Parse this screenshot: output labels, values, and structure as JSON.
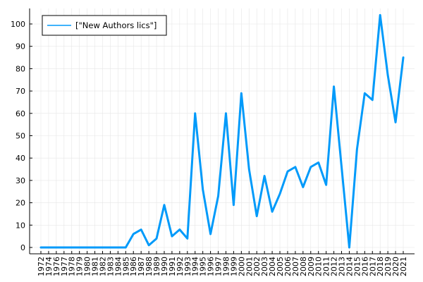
{
  "chart_data": {
    "type": "line",
    "legend_position": "top-left",
    "grid": true,
    "colors": {
      "line": "#009AFA",
      "grid": "#E6E6E6",
      "axis": "#000000"
    },
    "x": [
      "1972",
      "1974",
      "1976",
      "1977",
      "1978",
      "1979",
      "1980",
      "1981",
      "1982",
      "1983",
      "1984",
      "1985",
      "1986",
      "1987",
      "1988",
      "1989",
      "1990",
      "1991",
      "1992",
      "1993",
      "1994",
      "1995",
      "1996",
      "1997",
      "1998",
      "1999",
      "2000",
      "2001",
      "2002",
      "2003",
      "2004",
      "2005",
      "2006",
      "2007",
      "2008",
      "2009",
      "2010",
      "2011",
      "2012",
      "2013",
      "2014",
      "2015",
      "2016",
      "2017",
      "2018",
      "2019",
      "2020",
      "2021"
    ],
    "series": [
      {
        "name": "[\"New Authors lics\"]",
        "values": [
          0,
          0,
          0,
          0,
          0,
          0,
          0,
          0,
          0,
          0,
          0,
          0,
          6,
          8,
          1,
          4,
          19,
          5,
          8,
          4,
          60,
          26,
          6,
          23,
          60,
          19,
          69,
          35,
          14,
          32,
          16,
          24,
          34,
          36,
          27,
          36,
          38,
          28,
          72,
          36,
          0,
          44,
          69,
          66,
          104,
          77,
          56,
          85
        ]
      }
    ],
    "ylim": [
      0,
      105
    ],
    "yticks": [
      0,
      10,
      20,
      30,
      40,
      50,
      60,
      70,
      80,
      90,
      100
    ]
  }
}
